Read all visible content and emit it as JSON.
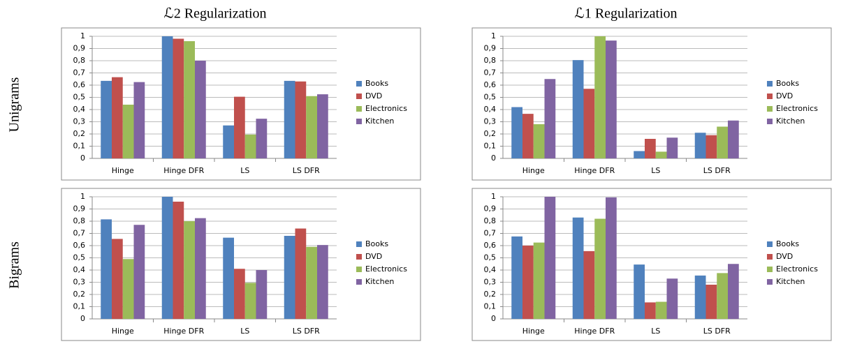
{
  "column_titles": [
    "ℒ2 Regularization",
    "ℒ1 Regularization"
  ],
  "row_labels": [
    "Unigrams",
    "Bigrams"
  ],
  "chart_data": [
    {
      "type": "bar",
      "categories": [
        "Hinge",
        "Hinge DFR",
        "LS",
        "LS DFR"
      ],
      "series": [
        {
          "name": "Books",
          "color": "#4f81bd",
          "values": [
            0.635,
            1,
            0.27,
            0.635
          ]
        },
        {
          "name": "DVD",
          "color": "#c0504d",
          "values": [
            0.665,
            0.98,
            0.505,
            0.63
          ]
        },
        {
          "name": "Electronics",
          "color": "#9bbb59",
          "values": [
            0.44,
            0.96,
            0.195,
            0.51
          ]
        },
        {
          "name": "Kitchen",
          "color": "#8064a2",
          "values": [
            0.625,
            0.8,
            0.325,
            0.525
          ]
        }
      ],
      "ylim": [
        0,
        1
      ],
      "yticks": [
        0,
        {
          "value": 0.1,
          "label": "0,1"
        },
        {
          "value": 0.2,
          "label": "0,2"
        },
        {
          "value": 0.3,
          "label": "0,3"
        },
        {
          "value": 0.4,
          "label": "0,4"
        },
        {
          "value": 0.5,
          "label": "0,5"
        },
        {
          "value": 0.6,
          "label": "0,6"
        },
        {
          "value": 0.7,
          "label": "0,7"
        },
        {
          "value": 0.8,
          "label": "0,8"
        },
        {
          "value": 0.9,
          "label": "0,9"
        },
        1
      ],
      "grid": true,
      "legend": "right"
    },
    {
      "type": "bar",
      "categories": [
        "Hinge",
        "Hinge DFR",
        "LS",
        "LS DFR"
      ],
      "series": [
        {
          "name": "Books",
          "color": "#4f81bd",
          "values": [
            0.42,
            0.805,
            0.06,
            0.21
          ]
        },
        {
          "name": "DVD",
          "color": "#c0504d",
          "values": [
            0.365,
            0.57,
            0.16,
            0.19
          ]
        },
        {
          "name": "Electronics",
          "color": "#9bbb59",
          "values": [
            0.28,
            1,
            0.055,
            0.26
          ]
        },
        {
          "name": "Kitchen",
          "color": "#8064a2",
          "values": [
            0.65,
            0.965,
            0.17,
            0.31
          ]
        }
      ],
      "ylim": [
        0,
        1
      ],
      "yticks": [
        0,
        {
          "value": 0.1,
          "label": "0,1"
        },
        {
          "value": 0.2,
          "label": "0,2"
        },
        {
          "value": 0.3,
          "label": "0,3"
        },
        {
          "value": 0.4,
          "label": "0,4"
        },
        {
          "value": 0.5,
          "label": "0,5"
        },
        {
          "value": 0.6,
          "label": "0,6"
        },
        {
          "value": 0.7,
          "label": "0,7"
        },
        {
          "value": 0.8,
          "label": "0,8"
        },
        {
          "value": 0.9,
          "label": "0,9"
        },
        1
      ],
      "grid": true,
      "legend": "right"
    },
    {
      "type": "bar",
      "categories": [
        "Hinge",
        "Hinge DFR",
        "LS",
        "LS DFR"
      ],
      "series": [
        {
          "name": "Books",
          "color": "#4f81bd",
          "values": [
            0.815,
            1,
            0.665,
            0.68
          ]
        },
        {
          "name": "DVD",
          "color": "#c0504d",
          "values": [
            0.655,
            0.96,
            0.41,
            0.74
          ]
        },
        {
          "name": "Electronics",
          "color": "#9bbb59",
          "values": [
            0.49,
            0.8,
            0.295,
            0.59
          ]
        },
        {
          "name": "Kitchen",
          "color": "#8064a2",
          "values": [
            0.77,
            0.825,
            0.4,
            0.605
          ]
        }
      ],
      "ylim": [
        0,
        1
      ],
      "yticks": [
        0,
        {
          "value": 0.1,
          "label": "0,1"
        },
        {
          "value": 0.2,
          "label": "0,2"
        },
        {
          "value": 0.3,
          "label": "0,3"
        },
        {
          "value": 0.4,
          "label": "0,4"
        },
        {
          "value": 0.5,
          "label": "0,5"
        },
        {
          "value": 0.6,
          "label": "0,6"
        },
        {
          "value": 0.7,
          "label": "0,7"
        },
        {
          "value": 0.8,
          "label": "0,8"
        },
        {
          "value": 0.9,
          "label": "0,9"
        },
        1
      ],
      "grid": true,
      "legend": "right"
    },
    {
      "type": "bar",
      "categories": [
        "Hinge",
        "Hinge DFR",
        "LS",
        "LS DFR"
      ],
      "series": [
        {
          "name": "Books",
          "color": "#4f81bd",
          "values": [
            0.675,
            0.83,
            0.445,
            0.355
          ]
        },
        {
          "name": "DVD",
          "color": "#c0504d",
          "values": [
            0.6,
            0.555,
            0.135,
            0.28
          ]
        },
        {
          "name": "Electronics",
          "color": "#9bbb59",
          "values": [
            0.625,
            0.82,
            0.14,
            0.375
          ]
        },
        {
          "name": "Kitchen",
          "color": "#8064a2",
          "values": [
            1,
            0.995,
            0.33,
            0.45
          ]
        }
      ],
      "ylim": [
        0,
        1
      ],
      "yticks": [
        0,
        {
          "value": 0.1,
          "label": "0,1"
        },
        {
          "value": 0.2,
          "label": "0,2"
        },
        {
          "value": 0.3,
          "label": "0,3"
        },
        {
          "value": 0.4,
          "label": "0,4"
        },
        {
          "value": 0.5,
          "label": "0,5"
        },
        {
          "value": 0.6,
          "label": "0,6"
        },
        {
          "value": 0.7,
          "label": "0,7"
        },
        {
          "value": 0.8,
          "label": "0,8"
        },
        {
          "value": 0.9,
          "label": "0,9"
        },
        1
      ],
      "grid": true,
      "legend": "right"
    }
  ]
}
